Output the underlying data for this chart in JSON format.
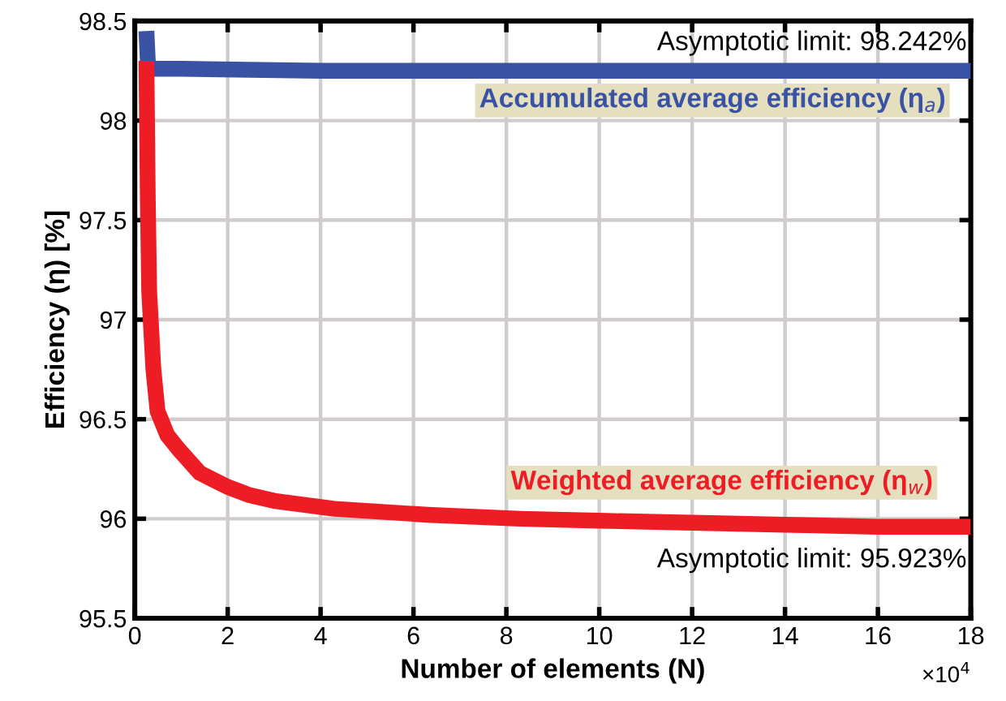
{
  "chart_data": {
    "type": "line",
    "xlabel": "Number of elements (N)",
    "ylabel": "Efficiency (η) [%]",
    "xlim": [
      0,
      18
    ],
    "xticks": [
      0,
      2,
      4,
      6,
      8,
      10,
      12,
      14,
      16,
      18
    ],
    "ylim": [
      95.5,
      98.5
    ],
    "yticks": [
      95.5,
      96,
      96.5,
      97,
      97.5,
      98,
      98.5
    ],
    "grid": true,
    "legend": false,
    "marker": "none",
    "line_style": "solid",
    "series": [
      {
        "name": "Accumulated average efficiency (η$_{a}$)",
        "color": "#3a52a3",
        "x": [
          0.25,
          0.28,
          0.3,
          1,
          4,
          10,
          18
        ],
        "values": [
          98.45,
          98.3,
          98.26,
          98.26,
          98.25,
          98.25,
          98.25
        ]
      },
      {
        "name": "Weighted average efficiency (η$_{w}$)",
        "color": "#ee1c25",
        "x": [
          0.25,
          0.28,
          0.31,
          0.4,
          0.49,
          0.7,
          0.94,
          1.4,
          2,
          2.45,
          3,
          4.3,
          6.3,
          8.3,
          10,
          12,
          14,
          16,
          18
        ],
        "values": [
          98.3,
          97.6,
          97.14,
          96.75,
          96.54,
          96.42,
          96.35,
          96.23,
          96.16,
          96.12,
          96.09,
          96.05,
          96.02,
          96.0,
          95.99,
          95.98,
          95.97,
          95.96,
          95.96
        ]
      }
    ],
    "annotations": [
      "Asymptotic limit: 98.242%",
      "Asymptotic limit: 95.923%",
      "×10$^{4}$"
    ]
  }
}
